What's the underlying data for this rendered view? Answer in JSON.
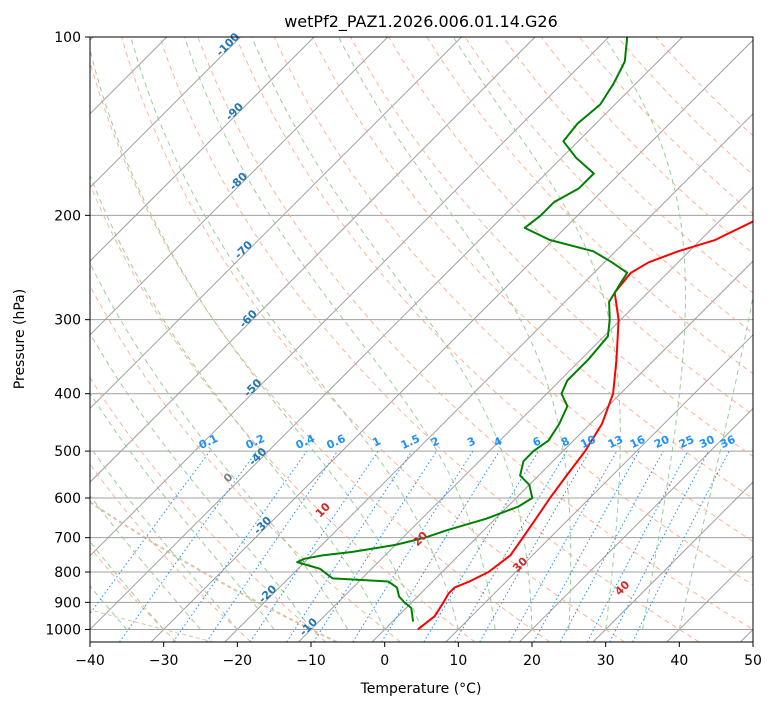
{
  "chart_data": {
    "type": "skew-t",
    "title": "wetPf2_PAZ1.2026.006.01.14.G26",
    "xlabel": "Temperature (°C)",
    "ylabel": "Pressure (hPa)",
    "xlim": [
      -40,
      50
    ],
    "plim": [
      1050,
      100
    ],
    "x_ticks": [
      -40,
      -30,
      -20,
      -10,
      0,
      10,
      20,
      30,
      40,
      50
    ],
    "p_ticks": [
      1000,
      900,
      800,
      700,
      600,
      500,
      400,
      300,
      200,
      100
    ],
    "grid": true,
    "colors": {
      "temperature": "#ff0000",
      "dewpoint": "#008000",
      "isotherm": "#a0a0a0",
      "dry_adiabat": "#ffa07a",
      "moist_adiabat": "#90c890",
      "mixing_ratio": "#1e90ff",
      "isotherm_label": "#1f77b4",
      "dry_adiabat_label": "#d62728",
      "curved_guide": "#d2b48c"
    },
    "series": [
      {
        "name": "Temperature",
        "color": "#ff0000",
        "points": [
          {
            "p": 1000,
            "t": 4.5
          },
          {
            "p": 950,
            "t": 5.0
          },
          {
            "p": 900,
            "t": 4.3
          },
          {
            "p": 870,
            "t": 3.8
          },
          {
            "p": 850,
            "t": 3.8
          },
          {
            "p": 830,
            "t": 5.0
          },
          {
            "p": 800,
            "t": 6.3
          },
          {
            "p": 750,
            "t": 7.0
          },
          {
            "p": 700,
            "t": 6.3
          },
          {
            "p": 650,
            "t": 5.5
          },
          {
            "p": 600,
            "t": 4.6
          },
          {
            "p": 550,
            "t": 3.8
          },
          {
            "p": 500,
            "t": 3.0
          },
          {
            "p": 450,
            "t": 1.6
          },
          {
            "p": 400,
            "t": -1.0
          },
          {
            "p": 350,
            "t": -5.2
          },
          {
            "p": 300,
            "t": -10.3
          },
          {
            "p": 270,
            "t": -14.5
          },
          {
            "p": 250,
            "t": -15.0
          },
          {
            "p": 240,
            "t": -14.0
          },
          {
            "p": 230,
            "t": -11.5
          },
          {
            "p": 220,
            "t": -8.0
          },
          {
            "p": 200,
            "t": -4.5
          },
          {
            "p": 180,
            "t": -1.0
          },
          {
            "p": 160,
            "t": 4.0
          },
          {
            "p": 150,
            "t": 8.0
          },
          {
            "p": 140,
            "t": 11.0
          },
          {
            "p": 130,
            "t": 13.5
          },
          {
            "p": 120,
            "t": 16.0
          },
          {
            "p": 110,
            "t": 20.0
          },
          {
            "p": 100,
            "t": 24.0
          }
        ]
      },
      {
        "name": "Dewpoint",
        "color": "#008000",
        "points": [
          {
            "p": 970,
            "t": 2.8
          },
          {
            "p": 920,
            "t": 0.7
          },
          {
            "p": 900,
            "t": -1.0
          },
          {
            "p": 880,
            "t": -2.5
          },
          {
            "p": 850,
            "t": -4.0
          },
          {
            "p": 830,
            "t": -6.0
          },
          {
            "p": 820,
            "t": -14.0
          },
          {
            "p": 800,
            "t": -16.0
          },
          {
            "p": 790,
            "t": -17.0
          },
          {
            "p": 780,
            "t": -19.0
          },
          {
            "p": 770,
            "t": -21.0
          },
          {
            "p": 760,
            "t": -20.5
          },
          {
            "p": 750,
            "t": -18.5
          },
          {
            "p": 740,
            "t": -15.0
          },
          {
            "p": 720,
            "t": -10.0
          },
          {
            "p": 700,
            "t": -7.0
          },
          {
            "p": 680,
            "t": -5.0
          },
          {
            "p": 650,
            "t": -1.2
          },
          {
            "p": 620,
            "t": 1.5
          },
          {
            "p": 600,
            "t": 2.2
          },
          {
            "p": 570,
            "t": 0.0
          },
          {
            "p": 550,
            "t": -2.5
          },
          {
            "p": 520,
            "t": -4.0
          },
          {
            "p": 500,
            "t": -4.0
          },
          {
            "p": 480,
            "t": -3.4
          },
          {
            "p": 450,
            "t": -4.2
          },
          {
            "p": 420,
            "t": -5.5
          },
          {
            "p": 400,
            "t": -8.0
          },
          {
            "p": 380,
            "t": -9.0
          },
          {
            "p": 350,
            "t": -9.0
          },
          {
            "p": 320,
            "t": -9.5
          },
          {
            "p": 300,
            "t": -11.5
          },
          {
            "p": 280,
            "t": -14.0
          },
          {
            "p": 260,
            "t": -15.0
          },
          {
            "p": 250,
            "t": -15.5
          },
          {
            "p": 240,
            "t": -19.0
          },
          {
            "p": 230,
            "t": -23.0
          },
          {
            "p": 220,
            "t": -30.5
          },
          {
            "p": 210,
            "t": -35.5
          },
          {
            "p": 200,
            "t": -35.0
          },
          {
            "p": 190,
            "t": -35.0
          },
          {
            "p": 180,
            "t": -33.5
          },
          {
            "p": 170,
            "t": -33.5
          },
          {
            "p": 160,
            "t": -38.0
          },
          {
            "p": 150,
            "t": -42.0
          },
          {
            "p": 140,
            "t": -42.5
          },
          {
            "p": 130,
            "t": -42.0
          },
          {
            "p": 120,
            "t": -43.0
          },
          {
            "p": 110,
            "t": -44.5
          },
          {
            "p": 100,
            "t": -47.5
          }
        ]
      }
    ],
    "isotherm_labels": [
      {
        "t": -100,
        "text": "-100"
      },
      {
        "t": -90,
        "text": "-90"
      },
      {
        "t": -80,
        "text": "-80"
      },
      {
        "t": -70,
        "text": "-70"
      },
      {
        "t": -60,
        "text": "-60"
      },
      {
        "t": -50,
        "text": "-50"
      },
      {
        "t": -40,
        "text": "-40"
      },
      {
        "t": -30,
        "text": "-30"
      },
      {
        "t": -20,
        "text": "-20"
      },
      {
        "t": -10,
        "text": "-10"
      }
    ],
    "mixing_ratio_labels": [
      "0.1",
      "0.2",
      "0.4",
      "0.6",
      "1",
      "1.5",
      "2",
      "3",
      "4",
      "6",
      "8",
      "10",
      "13",
      "16",
      "20",
      "25",
      "30",
      "36"
    ],
    "dry_adiabat_labels": [
      "0",
      "10",
      "20",
      "30",
      "40"
    ]
  }
}
